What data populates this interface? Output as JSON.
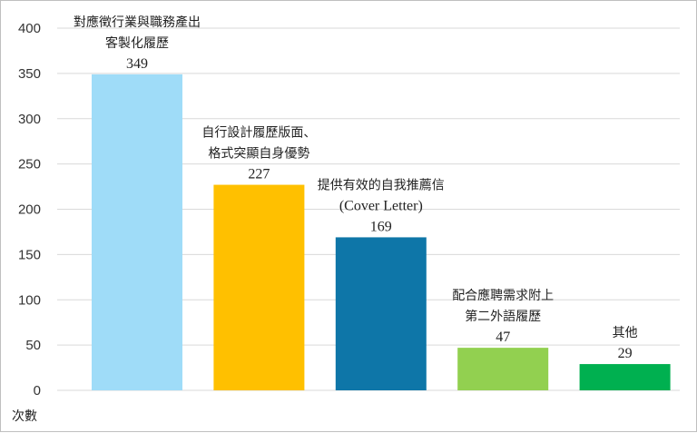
{
  "chart_data": {
    "type": "bar",
    "categories": [
      [
        "對應徵行業與職務產出",
        "客製化履歷"
      ],
      [
        "自行設計履歷版面、",
        "格式突顯自身優勢"
      ],
      [
        "提供有效的自我推薦信",
        "(Cover Letter)"
      ],
      [
        "配合應聘需求附上",
        "第二外語履歷"
      ],
      [
        "其他"
      ]
    ],
    "values": [
      349,
      227,
      169,
      47,
      29
    ],
    "colors": [
      "#9fdcf8",
      "#ffc000",
      "#0e76a8",
      "#92d050",
      "#00b050"
    ],
    "ylabel": "次數",
    "ylim": [
      0,
      400
    ],
    "yticks": [
      0,
      50,
      100,
      150,
      200,
      250,
      300,
      350,
      400
    ],
    "grid": true,
    "gridColor": "#d9d9d9"
  }
}
